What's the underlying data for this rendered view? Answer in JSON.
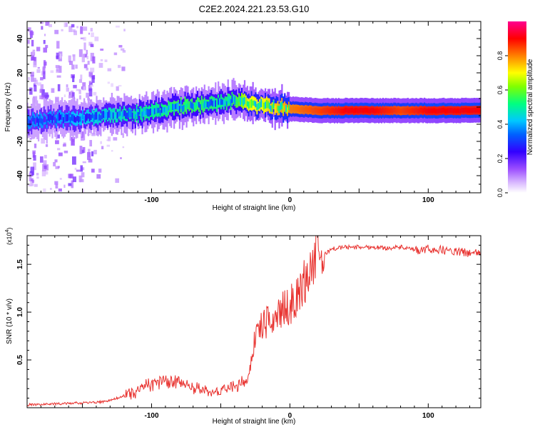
{
  "title": "C2E2.2024.221.23.53.G10",
  "colors": {
    "snr_line": "#e8322f",
    "axis": "#000000",
    "background": "#ffffff"
  },
  "colorbar": {
    "label": "Normalized spectral amplitude",
    "ticks": [
      {
        "value": 0.0,
        "label": "0.0"
      },
      {
        "value": 0.2,
        "label": "0.2"
      },
      {
        "value": 0.4,
        "label": "0.4"
      },
      {
        "value": 0.6,
        "label": "0.6"
      },
      {
        "value": 0.8,
        "label": "0.8"
      }
    ],
    "range": [
      0,
      1
    ]
  },
  "chart_data": [
    {
      "type": "heatmap",
      "xlabel": "Height of straight line (km)",
      "ylabel": "Frequency (Hz)",
      "xlim": [
        -190,
        138
      ],
      "ylim": [
        -50,
        50
      ],
      "x_ticks": [
        {
          "value": -100,
          "label": "-100"
        },
        {
          "value": 0,
          "label": "0"
        },
        {
          "value": 100,
          "label": "100"
        }
      ],
      "y_ticks": [
        {
          "value": -40,
          "label": "-40"
        },
        {
          "value": -20,
          "label": "-20"
        },
        {
          "value": 0,
          "label": "0"
        },
        {
          "value": 20,
          "label": "20"
        },
        {
          "value": 40,
          "label": "40"
        }
      ],
      "ridge": {
        "x": [
          -190,
          -170,
          -150,
          -130,
          -110,
          -95,
          -80,
          -65,
          -50,
          -40,
          -30,
          -20,
          -10,
          0,
          20,
          40,
          60,
          80,
          100,
          120,
          138
        ],
        "y": [
          -8,
          -7,
          -6,
          -5,
          -4,
          -2,
          0,
          1,
          3,
          4,
          2,
          1,
          0,
          -1,
          -2,
          -2,
          -2,
          -2,
          -2,
          -2,
          -2
        ],
        "amplitude": [
          0.35,
          0.35,
          0.4,
          0.45,
          0.5,
          0.5,
          0.55,
          0.55,
          0.5,
          0.55,
          0.7,
          0.7,
          0.75,
          0.8,
          0.85,
          0.9,
          0.9,
          0.85,
          0.9,
          0.9,
          0.9
        ]
      }
    },
    {
      "type": "line",
      "xlabel": "Height of straight line (km)",
      "ylabel": "SNR (10 * v/v)",
      "multiplier": "(x10",
      "multiplier_exp": "4",
      "multiplier_close": ")",
      "xlim": [
        -190,
        138
      ],
      "ylim": [
        0,
        1.8
      ],
      "x_ticks": [
        {
          "value": -100,
          "label": "-100"
        },
        {
          "value": 0,
          "label": "0"
        },
        {
          "value": 100,
          "label": "100"
        }
      ],
      "y_ticks": [
        {
          "value": 0.5,
          "label": "0.5"
        },
        {
          "value": 1.0,
          "label": "1.0"
        },
        {
          "value": 1.5,
          "label": "1.5"
        }
      ],
      "series": [
        {
          "x": [
            -190,
            -170,
            -150,
            -135,
            -125,
            -115,
            -105,
            -95,
            -90,
            -85,
            -80,
            -75,
            -70,
            -65,
            -60,
            -55,
            -50,
            -45,
            -40,
            -35,
            -30,
            -28,
            -25,
            -22,
            -20,
            -18,
            -15,
            -12,
            -10,
            -8,
            -5,
            -2,
            0,
            3,
            6,
            10,
            13,
            16,
            18,
            20,
            22,
            25,
            28,
            30,
            35,
            40,
            50,
            60,
            70,
            80,
            90,
            95,
            100,
            110,
            120,
            130,
            138
          ],
          "y": [
            0.03,
            0.04,
            0.05,
            0.06,
            0.1,
            0.15,
            0.22,
            0.28,
            0.3,
            0.25,
            0.27,
            0.24,
            0.2,
            0.18,
            0.17,
            0.16,
            0.18,
            0.2,
            0.22,
            0.25,
            0.3,
            0.5,
            0.75,
            0.82,
            0.85,
            0.88,
            0.9,
            0.93,
            0.96,
            1.0,
            1.02,
            1.05,
            1.08,
            1.1,
            1.18,
            1.3,
            1.4,
            1.5,
            1.55,
            1.62,
            1.58,
            1.6,
            1.64,
            1.66,
            1.67,
            1.68,
            1.68,
            1.68,
            1.67,
            1.68,
            1.65,
            1.64,
            1.66,
            1.65,
            1.63,
            1.62,
            1.61
          ]
        }
      ]
    }
  ]
}
